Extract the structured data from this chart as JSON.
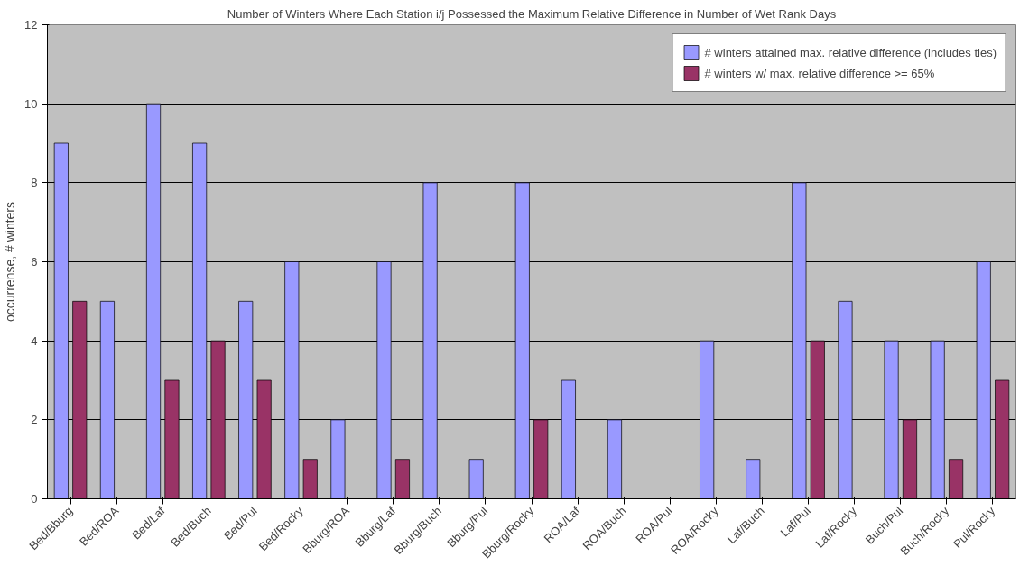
{
  "chart_data": {
    "type": "bar",
    "title": "Number of Winters Where Each Station i/j Possessed the Maximum Relative Difference in Number of Wet Rank Days",
    "ylabel": "occurrense, # winters",
    "categories": [
      "Bed/Bburg",
      "Bed/ROA",
      "Bed/Laf",
      "Bed/Buch",
      "Bed/Pul",
      "Bed/Rocky",
      "Bburg/ROA",
      "Bburg/Laf",
      "Bburg/Buch",
      "Bburg/Pul",
      "Bburg/Rocky",
      "ROA/Laf",
      "ROA/Buch",
      "ROA/Pul",
      "ROA/Rocky",
      "Laf/Buch",
      "Laf/Pul",
      "Laf/Rocky",
      "Buch/Pul",
      "Buch/Rocky",
      "Pul/Rocky"
    ],
    "series": [
      {
        "name": "# winters attained max. relative difference (includes ties)",
        "color": "#9999ff",
        "values": [
          9,
          5,
          10,
          9,
          5,
          6,
          2,
          6,
          8,
          1,
          8,
          3,
          2,
          0,
          4,
          1,
          8,
          5,
          4,
          4,
          6
        ]
      },
      {
        "name": "# winters w/ max. relative difference >= 65%",
        "color": "#993366",
        "values": [
          5,
          0,
          3,
          4,
          3,
          1,
          0,
          1,
          0,
          0,
          2,
          0,
          0,
          0,
          0,
          0,
          4,
          0,
          2,
          1,
          3
        ]
      }
    ],
    "ylim": [
      0,
      12
    ],
    "yticks": [
      0,
      2,
      4,
      6,
      8,
      10,
      12
    ],
    "grid": "y",
    "legend": "top right"
  }
}
